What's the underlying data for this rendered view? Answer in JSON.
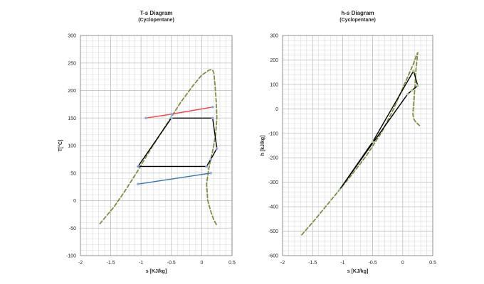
{
  "colors": {
    "grid_minor": "#d9d9d9",
    "grid_major": "#bfbfbf",
    "axis": "#808080",
    "saturation_dome": "#7f8f3f",
    "cycle": "#000000",
    "hot_stream": "#ff3b3b",
    "cold_stream": "#2e75b6",
    "marker_ts": "#8da9e6",
    "marker_hs": "#a9d18e"
  },
  "chart_data": [
    {
      "id": "ts",
      "type": "line",
      "title": "T-s Diagram",
      "subtitle": "(Cyclopentane)",
      "xlabel": "s [KJ/kg]",
      "ylabel": "T[°C]",
      "xlim": [
        -2,
        0.5
      ],
      "ylim": [
        -100,
        300
      ],
      "xticks": [
        -2,
        -1.5,
        -1,
        -0.5,
        0,
        0.5
      ],
      "xtick_labels": [
        "-2",
        "-1.5",
        "-1",
        "-0.5",
        "0",
        "0.5"
      ],
      "yticks": [
        -100,
        -50,
        0,
        50,
        100,
        150,
        200,
        250,
        300
      ],
      "ytick_labels": [
        "-100",
        "-50",
        "0",
        "50",
        "100",
        "150",
        "200",
        "250",
        "300"
      ],
      "grid": true,
      "series": [
        {
          "key": "saturation-dome",
          "style": "dashed",
          "color": "saturation_dome",
          "markers": false,
          "x": [
            -1.68,
            -1.45,
            -1.25,
            -1.05,
            -0.85,
            -0.6,
            -0.35,
            -0.15,
            0.0,
            0.08,
            0.12,
            0.15,
            0.18,
            0.2,
            0.22,
            0.24,
            0.25,
            0.23,
            0.18,
            0.12,
            0.08,
            0.1,
            0.15,
            0.2,
            0.25
          ],
          "y": [
            -42,
            -12,
            20,
            55,
            92,
            135,
            178,
            208,
            228,
            234,
            237,
            238,
            237,
            232,
            210,
            180,
            150,
            120,
            90,
            60,
            30,
            0,
            -20,
            -35,
            -45
          ]
        },
        {
          "key": "hot-stream",
          "style": "solid",
          "color": "hot_stream",
          "markers": true,
          "x": [
            -0.92,
            -0.5,
            0.18
          ],
          "y": [
            150,
            157,
            170
          ]
        },
        {
          "key": "cycle",
          "style": "solid",
          "color": "cycle",
          "markers": true,
          "x": [
            -1.05,
            -0.5,
            0.18,
            0.25,
            0.15,
            0.08,
            -1.05
          ],
          "y": [
            62,
            150,
            150,
            95,
            75,
            62,
            62
          ]
        },
        {
          "key": "cold-stream",
          "style": "solid",
          "color": "cold_stream",
          "markers": true,
          "x": [
            -1.05,
            0.15
          ],
          "y": [
            30,
            50
          ]
        }
      ]
    },
    {
      "id": "hs",
      "type": "line",
      "title": "h-s Diagram",
      "subtitle": "(Cyclopentane)",
      "xlabel": "s [KJ/kg]",
      "ylabel": "h [kJ/kg]",
      "xlim": [
        -2,
        0.5
      ],
      "ylim": [
        -600,
        300
      ],
      "xticks": [
        -2,
        -1.5,
        -1,
        -0.5,
        0,
        0.5
      ],
      "xtick_labels": [
        "-2",
        "-1.5",
        "-1",
        "-0.5",
        "0",
        "0.5"
      ],
      "yticks": [
        -600,
        -500,
        -400,
        -300,
        -200,
        -100,
        0,
        100,
        200,
        300
      ],
      "ytick_labels": [
        "-600",
        "-500",
        "-400",
        "-300",
        "-200",
        "-100",
        "0",
        "100",
        "200",
        "300"
      ],
      "grid": true,
      "series": [
        {
          "key": "saturation-dome",
          "style": "dashed",
          "color": "saturation_dome",
          "markers": false,
          "x": [
            -1.68,
            -1.45,
            -1.25,
            -1.05,
            -0.85,
            -0.6,
            -0.35,
            -0.15,
            0.0,
            0.1,
            0.18,
            0.22,
            0.25,
            0.22,
            0.2,
            0.17,
            0.18,
            0.22,
            0.28
          ],
          "y": [
            -515,
            -450,
            -390,
            -330,
            -270,
            -190,
            -95,
            0,
            85,
            140,
            185,
            215,
            230,
            160,
            80,
            -20,
            -40,
            -55,
            -68
          ]
        },
        {
          "key": "cycle",
          "style": "solid",
          "color": "cycle",
          "markers": true,
          "x": [
            -1.05,
            -0.5,
            0.18,
            0.25,
            0.15,
            0.08,
            -1.05
          ],
          "y": [
            -330,
            -135,
            155,
            95,
            75,
            60,
            -330
          ]
        }
      ]
    }
  ]
}
